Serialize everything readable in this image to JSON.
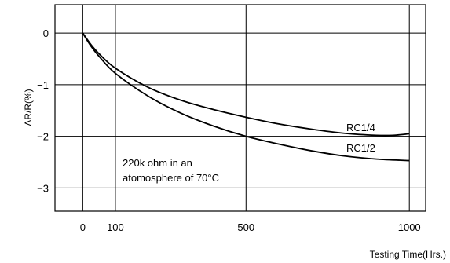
{
  "chart_data": {
    "type": "line",
    "xlabel": "Testing Time(Hrs.)",
    "ylabel": "ΔR/R(%)",
    "xlim": [
      -85,
      1050
    ],
    "ylim": [
      -3.45,
      0.55
    ],
    "x_ticks": [
      0,
      100,
      500,
      1000
    ],
    "x_tick_labels": [
      "0",
      "100",
      "500",
      "1000"
    ],
    "y_ticks": [
      0,
      -1,
      -2,
      -3
    ],
    "y_tick_labels": [
      "0",
      "−1",
      "−2",
      "−3"
    ],
    "grid": true,
    "annotation": [
      "220k ohm in an",
      "atomosphere of 70°C"
    ],
    "series": [
      {
        "name": "RC1/4",
        "x": [
          0,
          25,
          50,
          100,
          200,
          300,
          400,
          500,
          600,
          700,
          800,
          900,
          950,
          1000
        ],
        "y": [
          0,
          -0.22,
          -0.4,
          -0.68,
          -1.05,
          -1.3,
          -1.48,
          -1.63,
          -1.76,
          -1.86,
          -1.94,
          -1.98,
          -1.98,
          -1.95
        ]
      },
      {
        "name": "RC1/2",
        "x": [
          0,
          25,
          50,
          100,
          200,
          300,
          400,
          500,
          600,
          700,
          800,
          900,
          1000
        ],
        "y": [
          0,
          -0.25,
          -0.45,
          -0.78,
          -1.22,
          -1.55,
          -1.8,
          -2.0,
          -2.15,
          -2.28,
          -2.38,
          -2.44,
          -2.47
        ]
      }
    ]
  }
}
